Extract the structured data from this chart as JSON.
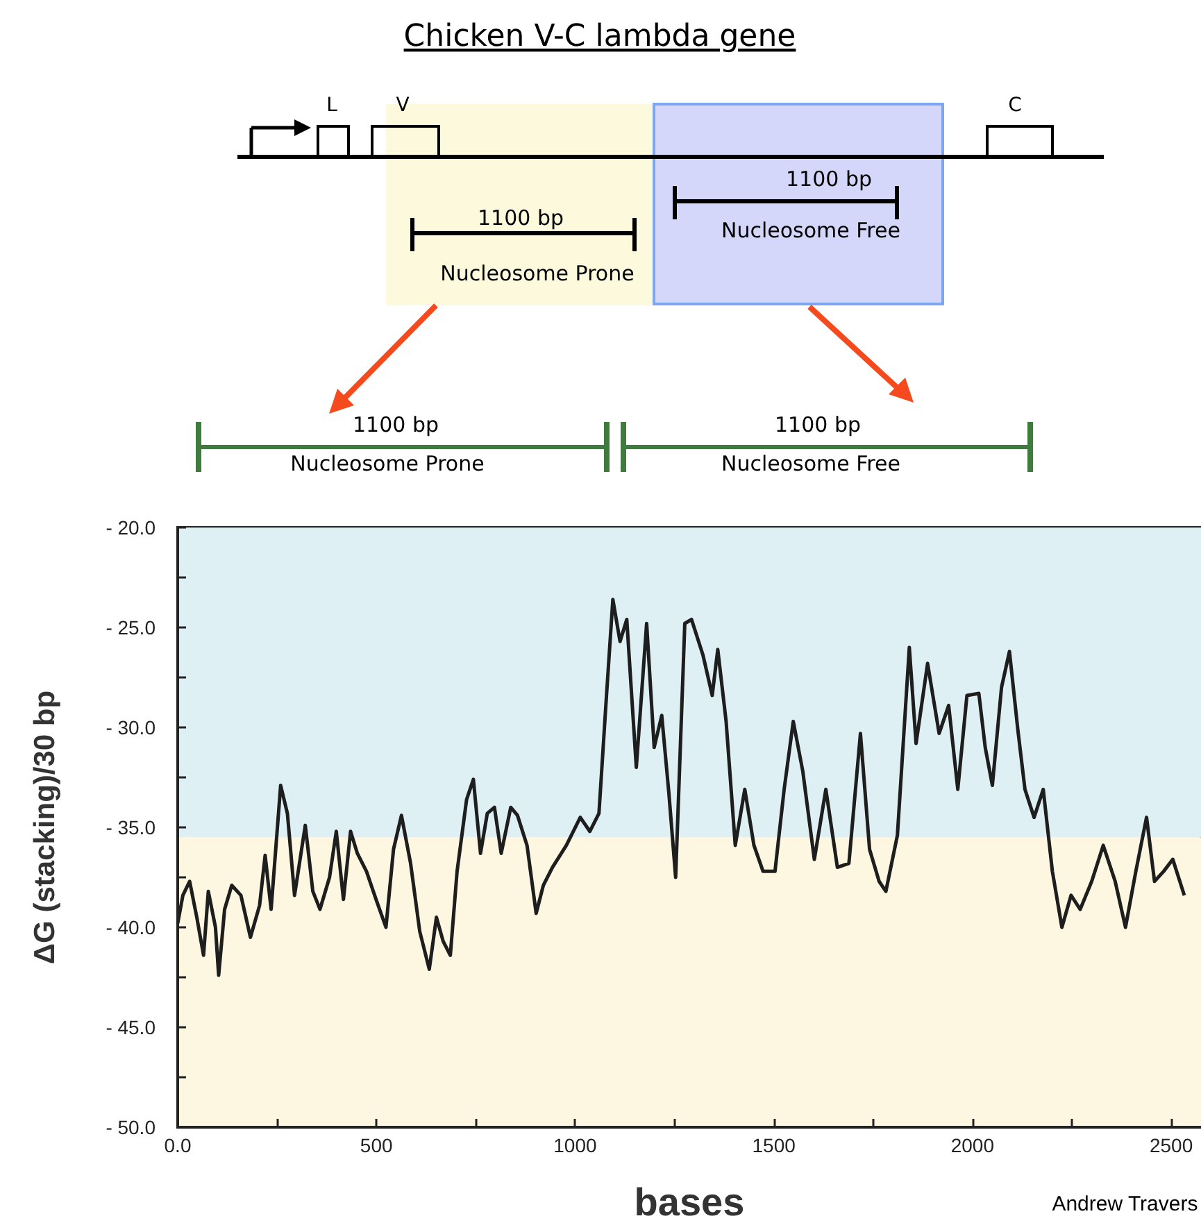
{
  "chart_data": {
    "type": "line",
    "title": "Chicken V-C lambda gene",
    "xlabel": "bases",
    "ylabel": "ΔG (stacking)/30 bp",
    "annotations": [
      "L",
      "V",
      "C",
      "1100 bp",
      "Nucleosome Prone",
      "1100 bp",
      "Nucleosome Free",
      "1100 bp",
      "Nucleosome Prone",
      "1100 bp",
      "Nucleosome Free",
      "Andrew Travers"
    ],
    "series": [
      {
        "color": "#1e1e1e",
        "x": [
          0,
          13,
          30,
          48,
          65,
          77,
          95,
          103,
          118,
          136,
          159,
          183,
          206,
          220,
          235,
          259,
          276,
          294,
          321,
          340,
          358,
          382,
          399,
          417,
          435,
          452,
          475,
          499,
          524,
          543,
          563,
          586,
          609,
          633,
          651,
          668,
          686,
          703,
          727,
          744,
          762,
          779,
          797,
          814,
          838,
          855,
          879,
          902,
          920,
          943,
          978,
          1013,
          1037,
          1060,
          1078,
          1095,
          1113,
          1130,
          1154,
          1180,
          1199,
          1218,
          1236,
          1253,
          1276,
          1293,
          1322,
          1345,
          1359,
          1380,
          1403,
          1427,
          1450,
          1473,
          1503,
          1526,
          1549,
          1573,
          1602,
          1631,
          1660,
          1689,
          1718,
          1741,
          1765,
          1782,
          1811,
          1841,
          1858,
          1887,
          1916,
          1940,
          1963,
          1986,
          2016,
          2032,
          2050,
          2073,
          2093,
          2114,
          2132,
          2155,
          2178,
          2201,
          2225,
          2248,
          2271,
          2300,
          2329,
          2359,
          2385,
          2411,
          2438,
          2458,
          2481,
          2504,
          2533
        ],
        "values": [
          -39.8,
          -38.4,
          -37.7,
          -39.5,
          -41.4,
          -38.2,
          -40.0,
          -42.4,
          -39.1,
          -37.9,
          -38.4,
          -40.5,
          -38.9,
          -36.4,
          -39.1,
          -32.9,
          -34.3,
          -38.4,
          -34.9,
          -38.2,
          -39.1,
          -37.5,
          -35.2,
          -38.6,
          -35.2,
          -36.3,
          -37.2,
          -38.6,
          -40.0,
          -36.1,
          -34.4,
          -36.8,
          -40.2,
          -42.1,
          -39.5,
          -40.7,
          -41.4,
          -37.2,
          -33.6,
          -32.6,
          -36.3,
          -34.3,
          -34.0,
          -36.3,
          -34.0,
          -34.4,
          -35.9,
          -39.3,
          -37.9,
          -37.0,
          -35.9,
          -34.5,
          -35.2,
          -34.3,
          -28.7,
          -23.6,
          -25.7,
          -24.6,
          -32.0,
          -24.8,
          -31.0,
          -29.4,
          -33.3,
          -37.5,
          -24.8,
          -24.6,
          -26.4,
          -28.4,
          -26.1,
          -29.7,
          -35.9,
          -33.1,
          -35.9,
          -37.2,
          -37.2,
          -33.1,
          -29.7,
          -32.2,
          -36.6,
          -33.1,
          -37.0,
          -36.8,
          -30.3,
          -36.1,
          -37.7,
          -38.2,
          -35.4,
          -26.0,
          -30.8,
          -26.8,
          -30.3,
          -28.9,
          -33.1,
          -28.4,
          -28.3,
          -31.0,
          -32.9,
          -28.0,
          -26.2,
          -30.1,
          -33.1,
          -34.5,
          -33.1,
          -37.2,
          -40.0,
          -38.4,
          -39.1,
          -37.7,
          -35.9,
          -37.7,
          -40.0,
          -37.2,
          -34.5,
          -37.7,
          -37.2,
          -36.6,
          -38.4
        ]
      }
    ],
    "xlim": [
      0,
      2575
    ],
    "xticks": [
      {
        "value": 0,
        "label": "0.0"
      },
      {
        "value": 250,
        "label": null
      },
      500,
      {
        "value": 750,
        "label": null
      },
      1000,
      {
        "value": 1250,
        "label": null
      },
      1500,
      {
        "value": 1750,
        "label": null
      },
      2000,
      {
        "value": 2250,
        "label": null
      },
      2500
    ],
    "ylim": [
      -50,
      -20
    ],
    "yticks": [
      {
        "value": -50,
        "label": "- 50.0"
      },
      {
        "value": -47.5,
        "label": null
      },
      {
        "value": -45,
        "label": "- 45.0"
      },
      {
        "value": -42.5,
        "label": null
      },
      {
        "value": -40,
        "label": "- 40.0"
      },
      {
        "value": -37.5,
        "label": null
      },
      {
        "value": -35,
        "label": "- 35.0"
      },
      {
        "value": -32.5,
        "label": null
      },
      {
        "value": -30,
        "label": "- 30.0"
      },
      {
        "value": -27.5,
        "label": null
      },
      {
        "value": -25,
        "label": "- 25.0"
      },
      {
        "value": -22.5,
        "label": null
      },
      {
        "value": -20,
        "label": "- 20.0"
      }
    ],
    "bands": [
      {
        "axis": "y",
        "from": -35.5,
        "to": -20,
        "color": "#dff0f5"
      },
      {
        "axis": "y",
        "from": -50,
        "to": -35.5,
        "color": "#fdf6e0"
      }
    ],
    "grid": false,
    "marker": "none",
    "line_style": "solid"
  }
}
